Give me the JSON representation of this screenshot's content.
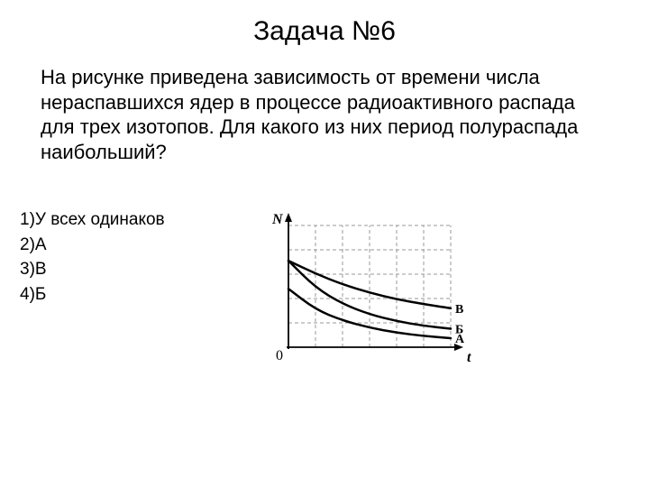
{
  "title": "Задача №6",
  "body": "На рисунке приведена зависимость от времени числа нераспавшихся ядер в процессе радиоактивного распада для трех изотопов. Для какого из них период полураспада наибольший?",
  "options": [
    "1)У всех одинаков",
    "2)А",
    "3)В",
    "4)Б"
  ],
  "chart": {
    "type": "line",
    "background_color": "#ffffff",
    "grid_color": "#9a9a9a",
    "axis_color": "#000000",
    "curve_color": "#000000",
    "label_color": "#000000",
    "x_axis_label": "t",
    "y_axis_label": "N",
    "origin_label": "0",
    "x_grid": [
      0,
      1,
      2,
      3,
      4,
      5,
      6
    ],
    "y_grid": [
      0,
      1,
      2,
      3,
      4,
      5
    ],
    "curves": [
      {
        "name": "А",
        "label": "А",
        "stroke_width": 2.5,
        "points": [
          {
            "x": 0,
            "y": 2.4
          },
          {
            "x": 1,
            "y": 1.55
          },
          {
            "x": 2,
            "y": 1.1
          },
          {
            "x": 3,
            "y": 0.8
          },
          {
            "x": 4,
            "y": 0.6
          },
          {
            "x": 5,
            "y": 0.46
          },
          {
            "x": 6,
            "y": 0.37
          }
        ]
      },
      {
        "name": "Б",
        "label": "Б",
        "stroke_width": 2.5,
        "points": [
          {
            "x": 0,
            "y": 3.55
          },
          {
            "x": 1,
            "y": 2.45
          },
          {
            "x": 2,
            "y": 1.78
          },
          {
            "x": 3,
            "y": 1.35
          },
          {
            "x": 4,
            "y": 1.07
          },
          {
            "x": 5,
            "y": 0.88
          },
          {
            "x": 6,
            "y": 0.76
          }
        ]
      },
      {
        "name": "В",
        "label": "В",
        "stroke_width": 2.5,
        "points": [
          {
            "x": 0,
            "y": 3.55
          },
          {
            "x": 1,
            "y": 3.02
          },
          {
            "x": 2,
            "y": 2.58
          },
          {
            "x": 3,
            "y": 2.24
          },
          {
            "x": 4,
            "y": 1.97
          },
          {
            "x": 5,
            "y": 1.77
          },
          {
            "x": 6,
            "y": 1.6
          }
        ]
      }
    ],
    "label_fontsize": 14,
    "axis_label_fontsize": 16
  }
}
